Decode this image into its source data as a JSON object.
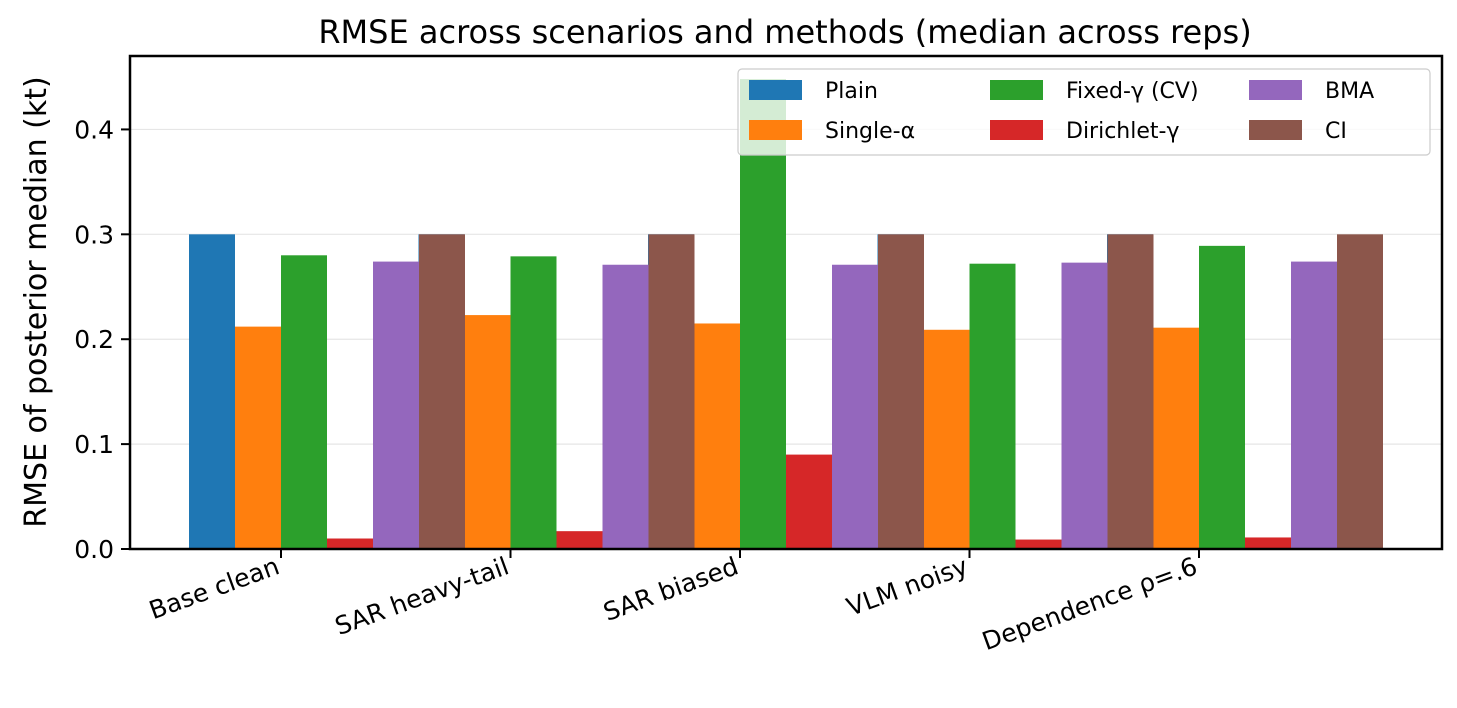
{
  "chart_data": {
    "type": "bar",
    "title": "RMSE across scenarios and methods (median across reps)",
    "xlabel": "",
    "ylabel": "RMSE of posterior median (kt)",
    "ylim": [
      0,
      0.47
    ],
    "yticks": [
      0.0,
      0.1,
      0.2,
      0.3,
      0.4
    ],
    "ytick_labels": [
      "0.0",
      "0.1",
      "0.2",
      "0.3",
      "0.4"
    ],
    "grid": "horizontal",
    "legend_position": "top-right",
    "legend_columns": 3,
    "categories": [
      "Base clean",
      "SAR heavy-tail",
      "SAR biased",
      "VLM noisy",
      "Dependence ρ=.6"
    ],
    "series": [
      {
        "name": "Plain",
        "color": "#1f77b4",
        "values": [
          0.3,
          0.3,
          0.3,
          0.3,
          0.3
        ]
      },
      {
        "name": "Single-α",
        "color": "#ff7f0e",
        "values": [
          0.212,
          0.223,
          0.215,
          0.209,
          0.211
        ]
      },
      {
        "name": "Fixed-γ (CV)",
        "color": "#2ca02c",
        "values": [
          0.28,
          0.279,
          0.448,
          0.272,
          0.289
        ]
      },
      {
        "name": "Dirichlet-γ",
        "color": "#d62728",
        "values": [
          0.01,
          0.017,
          0.09,
          0.009,
          0.011
        ]
      },
      {
        "name": "BMA",
        "color": "#9467bd",
        "values": [
          0.274,
          0.271,
          0.271,
          0.273,
          0.274
        ]
      },
      {
        "name": "CI",
        "color": "#8c564b",
        "values": [
          0.3,
          0.3,
          0.3,
          0.3,
          0.3
        ]
      }
    ]
  }
}
